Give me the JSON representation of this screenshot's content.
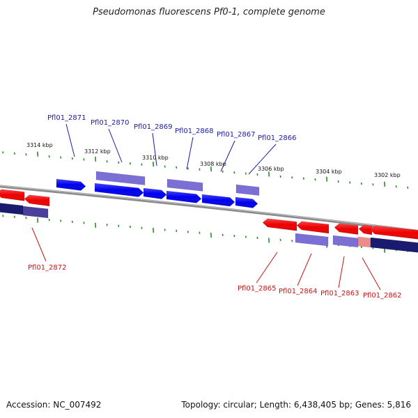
{
  "title": "Pseudomonas fluorescens Pf0-1, complete genome",
  "footer": {
    "accession": "Accession: NC_007492",
    "summary": "Topology: circular; Length: 6,438,405 bp; Genes: 5,816"
  },
  "colors": {
    "forward": "#0000ee",
    "forward_light": "#7b6fd6",
    "reverse": "#ee0000",
    "reverse_light": "#ef8a8a",
    "dark_navy": "#1a1a6e",
    "tick": "#2a8a2a",
    "backbone": "#8a8a8a",
    "label_forward": "#1a1aaa",
    "label_reverse": "#cc1111"
  },
  "scale_labels": [
    "3314 kbp",
    "3312 kbp",
    "3310 kbp",
    "3308 kbp",
    "3306 kbp",
    "3304 kbp",
    "3302 kbp"
  ],
  "forward_genes": [
    "Pfl01_2871",
    "Pfl01_2870",
    "Pfl01_2869",
    "Pfl01_2868",
    "Pfl01_2867",
    "Pfl01_2866"
  ],
  "reverse_genes": [
    "Pfl01_2872",
    "Pfl01_2865",
    "Pfl01_2864",
    "Pfl01_2863",
    "Pfl01_2862"
  ]
}
